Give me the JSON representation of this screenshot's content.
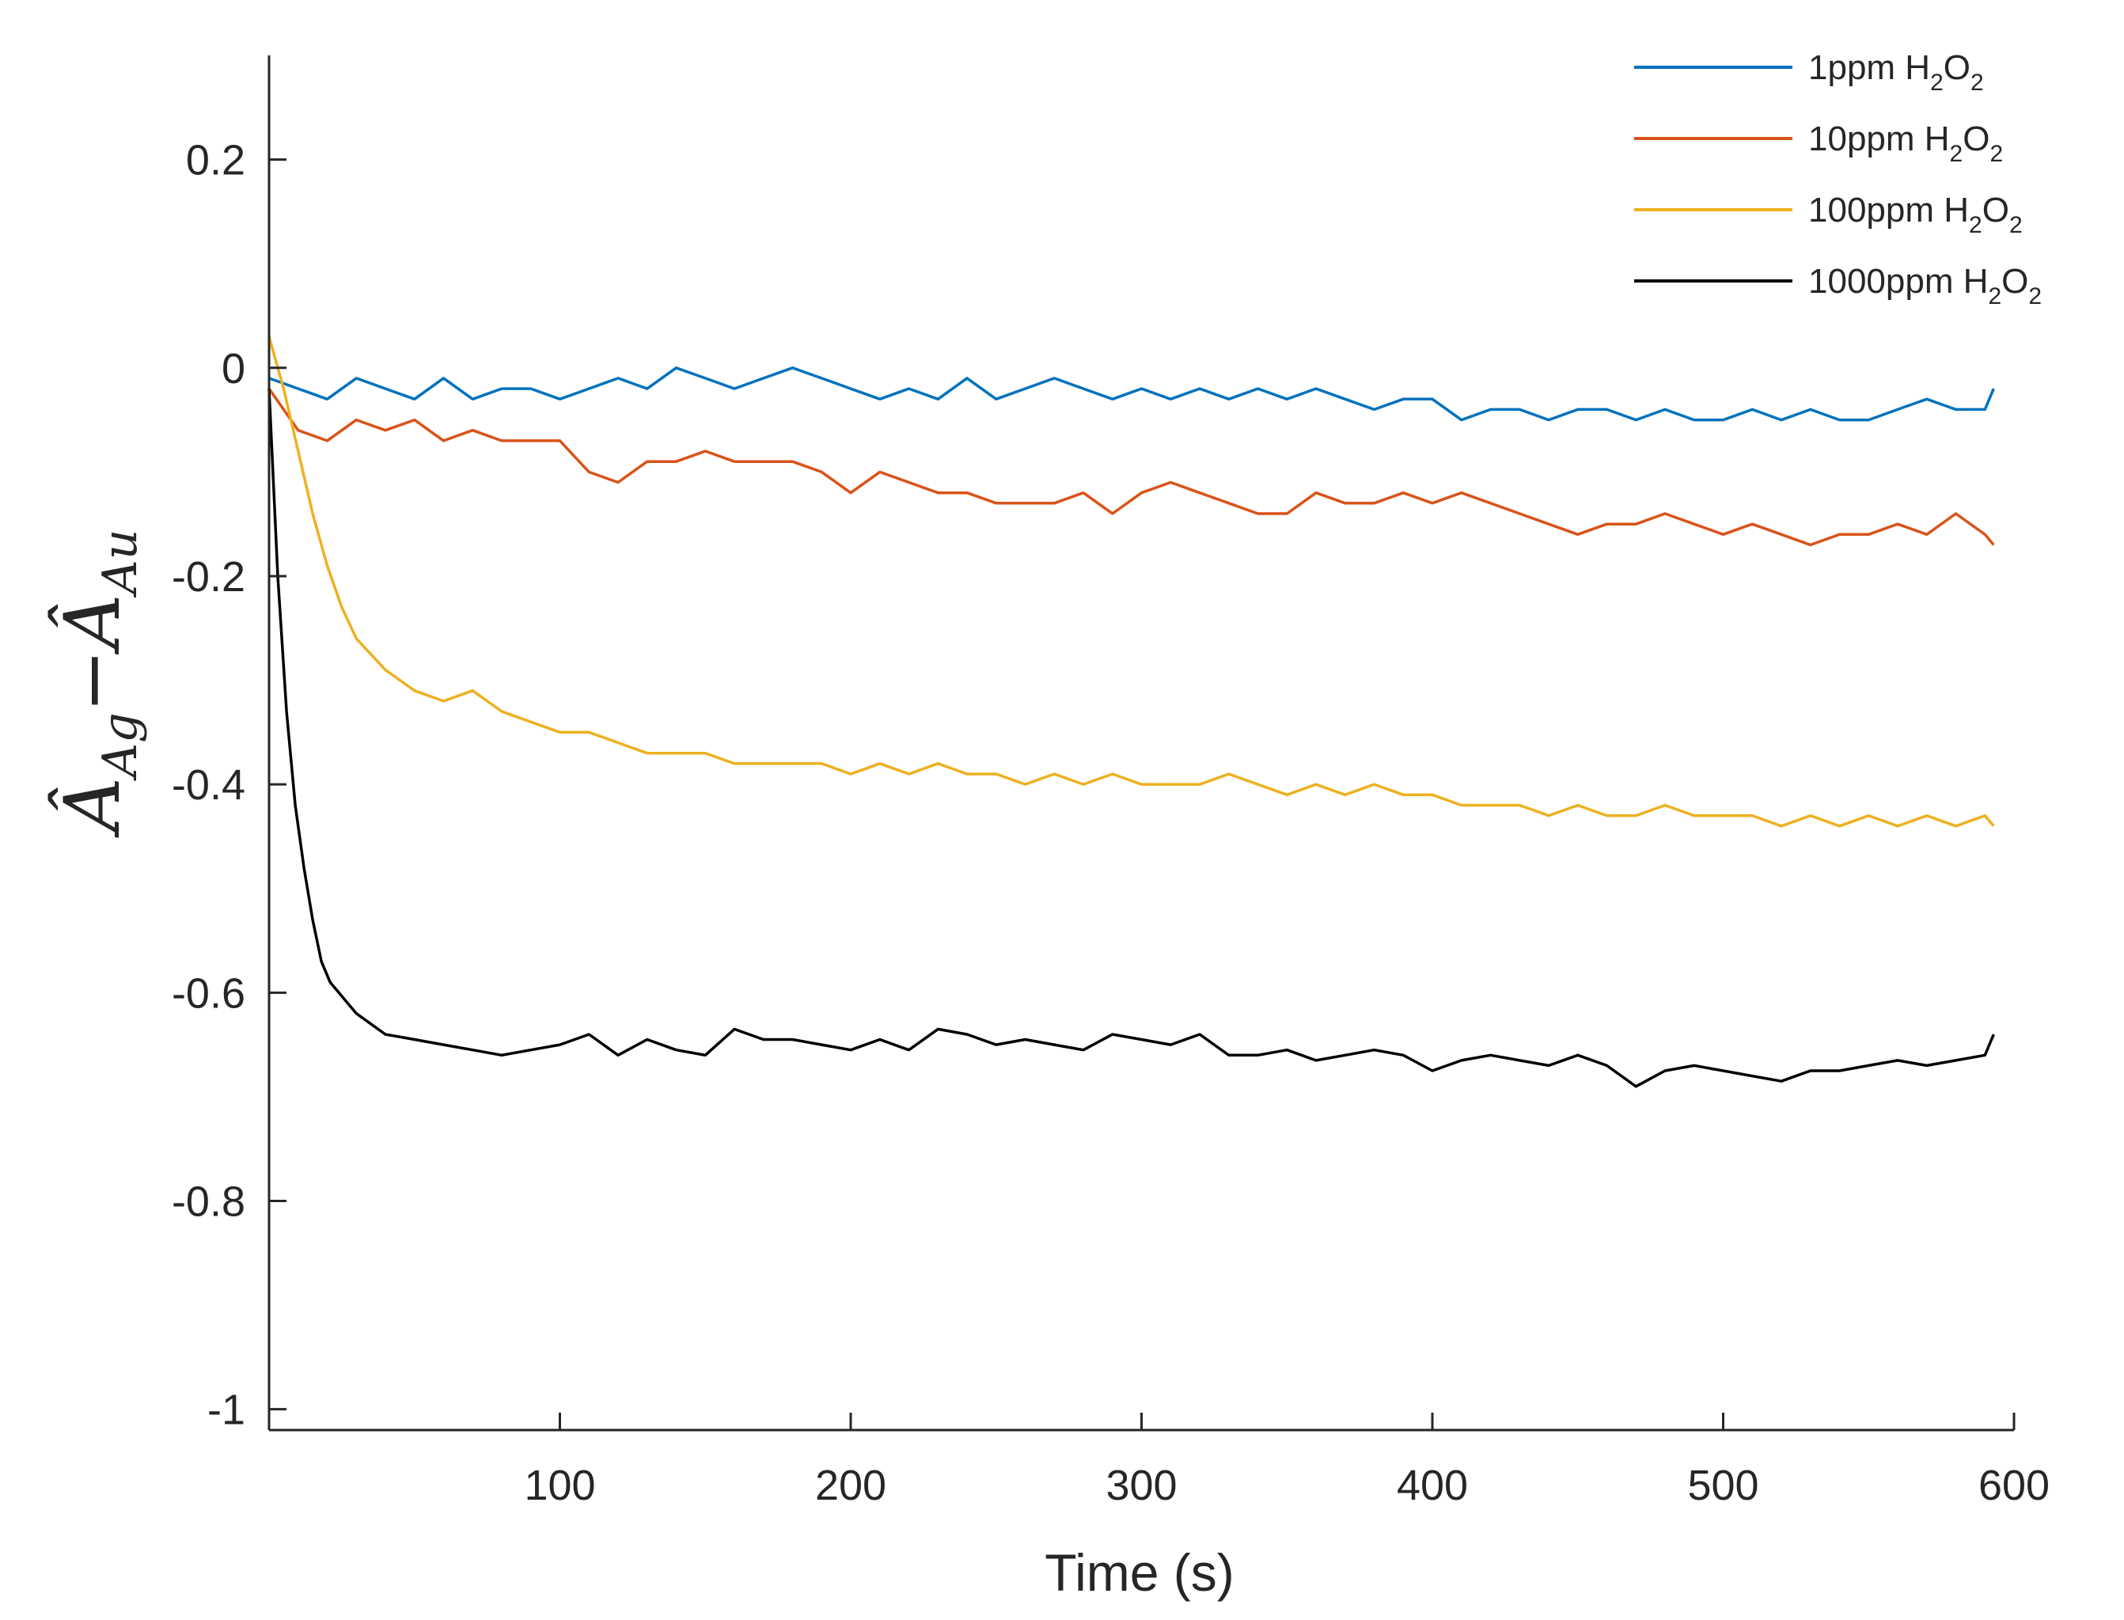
{
  "chart_data": {
    "type": "line",
    "title": "",
    "xlabel": "Time (s)",
    "ylabel": "Â_Ag − Â_Au",
    "ylabel_parts": {
      "a1": "Â",
      "s1": "Ag",
      "minus": "−",
      "a2": "Â",
      "s2": "Au"
    },
    "xlim": [
      0,
      600
    ],
    "ylim": [
      -1.02,
      0.3
    ],
    "xticks": [
      100,
      200,
      300,
      400,
      500,
      600
    ],
    "xtick_labels": [
      "100",
      "200",
      "300",
      "400",
      "500",
      "600"
    ],
    "yticks": [
      0.2,
      0,
      -0.2,
      -0.4,
      -0.6,
      -0.8,
      -1
    ],
    "ytick_labels": [
      "0.2",
      "0",
      "-0.2",
      "-0.4",
      "-0.6",
      "-0.8",
      "-1"
    ],
    "grid": false,
    "legend_position": "top-right",
    "series": [
      {
        "name": "1ppm H2O2",
        "legend": {
          "prefix": "1ppm H",
          "sub1": "2",
          "mid": "O",
          "sub2": "2"
        },
        "color": "#0072BD",
        "x": [
          0,
          10,
          20,
          30,
          40,
          50,
          60,
          70,
          80,
          90,
          100,
          110,
          120,
          130,
          140,
          150,
          160,
          170,
          180,
          190,
          200,
          210,
          220,
          230,
          240,
          250,
          260,
          270,
          280,
          290,
          300,
          310,
          320,
          330,
          340,
          350,
          360,
          370,
          380,
          390,
          400,
          410,
          420,
          430,
          440,
          450,
          460,
          470,
          480,
          490,
          500,
          510,
          520,
          530,
          540,
          550,
          560,
          570,
          580,
          590,
          593
        ],
        "y": [
          -0.01,
          -0.02,
          -0.03,
          -0.01,
          -0.02,
          -0.03,
          -0.01,
          -0.03,
          -0.02,
          -0.02,
          -0.03,
          -0.02,
          -0.01,
          -0.02,
          0.0,
          -0.01,
          -0.02,
          -0.01,
          0.0,
          -0.01,
          -0.02,
          -0.03,
          -0.02,
          -0.03,
          -0.01,
          -0.03,
          -0.02,
          -0.01,
          -0.02,
          -0.03,
          -0.02,
          -0.03,
          -0.02,
          -0.03,
          -0.02,
          -0.03,
          -0.02,
          -0.03,
          -0.04,
          -0.03,
          -0.03,
          -0.05,
          -0.04,
          -0.04,
          -0.05,
          -0.04,
          -0.04,
          -0.05,
          -0.04,
          -0.05,
          -0.05,
          -0.04,
          -0.05,
          -0.04,
          -0.05,
          -0.05,
          -0.04,
          -0.03,
          -0.04,
          -0.04,
          -0.02
        ]
      },
      {
        "name": "10ppm H2O2",
        "legend": {
          "prefix": "10ppm H",
          "sub1": "2",
          "mid": "O",
          "sub2": "2"
        },
        "color": "#D95319",
        "x": [
          0,
          10,
          20,
          30,
          40,
          50,
          60,
          70,
          80,
          90,
          100,
          110,
          120,
          130,
          140,
          150,
          160,
          170,
          180,
          190,
          200,
          210,
          220,
          230,
          240,
          250,
          260,
          270,
          280,
          290,
          300,
          310,
          320,
          330,
          340,
          350,
          360,
          370,
          380,
          390,
          400,
          410,
          420,
          430,
          440,
          450,
          460,
          470,
          480,
          490,
          500,
          510,
          520,
          530,
          540,
          550,
          560,
          570,
          580,
          590,
          593
        ],
        "y": [
          -0.02,
          -0.06,
          -0.07,
          -0.05,
          -0.06,
          -0.05,
          -0.07,
          -0.06,
          -0.07,
          -0.07,
          -0.07,
          -0.1,
          -0.11,
          -0.09,
          -0.09,
          -0.08,
          -0.09,
          -0.09,
          -0.09,
          -0.1,
          -0.12,
          -0.1,
          -0.11,
          -0.12,
          -0.12,
          -0.13,
          -0.13,
          -0.13,
          -0.12,
          -0.14,
          -0.12,
          -0.11,
          -0.12,
          -0.13,
          -0.14,
          -0.14,
          -0.12,
          -0.13,
          -0.13,
          -0.12,
          -0.13,
          -0.12,
          -0.13,
          -0.14,
          -0.15,
          -0.16,
          -0.15,
          -0.15,
          -0.14,
          -0.15,
          -0.16,
          -0.15,
          -0.16,
          -0.17,
          -0.16,
          -0.16,
          -0.15,
          -0.16,
          -0.14,
          -0.16,
          -0.17
        ]
      },
      {
        "name": "100ppm H2O2",
        "legend": {
          "prefix": "100ppm H",
          "sub1": "2",
          "mid": "O",
          "sub2": "2"
        },
        "color": "#EDB120",
        "x": [
          0,
          5,
          10,
          15,
          20,
          25,
          30,
          40,
          50,
          60,
          70,
          80,
          90,
          100,
          110,
          120,
          130,
          140,
          150,
          160,
          170,
          180,
          190,
          200,
          210,
          220,
          230,
          240,
          250,
          260,
          270,
          280,
          290,
          300,
          310,
          320,
          330,
          340,
          350,
          360,
          370,
          380,
          390,
          400,
          410,
          420,
          430,
          440,
          450,
          460,
          470,
          480,
          490,
          500,
          510,
          520,
          530,
          540,
          550,
          560,
          570,
          580,
          590,
          593
        ],
        "y": [
          0.03,
          -0.02,
          -0.08,
          -0.14,
          -0.19,
          -0.23,
          -0.26,
          -0.29,
          -0.31,
          -0.32,
          -0.31,
          -0.33,
          -0.34,
          -0.35,
          -0.35,
          -0.36,
          -0.37,
          -0.37,
          -0.37,
          -0.38,
          -0.38,
          -0.38,
          -0.38,
          -0.39,
          -0.38,
          -0.39,
          -0.38,
          -0.39,
          -0.39,
          -0.4,
          -0.39,
          -0.4,
          -0.39,
          -0.4,
          -0.4,
          -0.4,
          -0.39,
          -0.4,
          -0.41,
          -0.4,
          -0.41,
          -0.4,
          -0.41,
          -0.41,
          -0.42,
          -0.42,
          -0.42,
          -0.43,
          -0.42,
          -0.43,
          -0.43,
          -0.42,
          -0.43,
          -0.43,
          -0.43,
          -0.44,
          -0.43,
          -0.44,
          -0.43,
          -0.44,
          -0.43,
          -0.44,
          -0.43,
          -0.44
        ]
      },
      {
        "name": "1000ppm H2O2",
        "legend": {
          "prefix": "1000ppm H",
          "sub1": "2",
          "mid": "O",
          "sub2": "2"
        },
        "color": "#000000",
        "x": [
          0,
          3,
          6,
          9,
          12,
          15,
          18,
          21,
          24,
          27,
          30,
          35,
          40,
          50,
          60,
          70,
          80,
          90,
          100,
          110,
          120,
          130,
          140,
          150,
          160,
          170,
          180,
          190,
          200,
          210,
          220,
          230,
          240,
          250,
          260,
          270,
          280,
          290,
          300,
          310,
          320,
          330,
          340,
          350,
          360,
          370,
          380,
          390,
          400,
          410,
          420,
          430,
          440,
          450,
          460,
          470,
          480,
          490,
          500,
          510,
          520,
          530,
          540,
          550,
          560,
          570,
          580,
          590,
          593
        ],
        "y": [
          -0.02,
          -0.2,
          -0.33,
          -0.42,
          -0.48,
          -0.53,
          -0.57,
          -0.59,
          -0.6,
          -0.61,
          -0.62,
          -0.63,
          -0.64,
          -0.645,
          -0.65,
          -0.655,
          -0.66,
          -0.655,
          -0.65,
          -0.64,
          -0.66,
          -0.645,
          -0.655,
          -0.66,
          -0.635,
          -0.645,
          -0.645,
          -0.65,
          -0.655,
          -0.645,
          -0.655,
          -0.635,
          -0.64,
          -0.65,
          -0.645,
          -0.65,
          -0.655,
          -0.64,
          -0.645,
          -0.65,
          -0.64,
          -0.66,
          -0.66,
          -0.655,
          -0.665,
          -0.66,
          -0.655,
          -0.66,
          -0.675,
          -0.665,
          -0.66,
          -0.665,
          -0.67,
          -0.66,
          -0.67,
          -0.69,
          -0.675,
          -0.67,
          -0.675,
          -0.68,
          -0.685,
          -0.675,
          -0.675,
          -0.67,
          -0.665,
          -0.67,
          -0.665,
          -0.66,
          -0.64
        ]
      }
    ]
  }
}
